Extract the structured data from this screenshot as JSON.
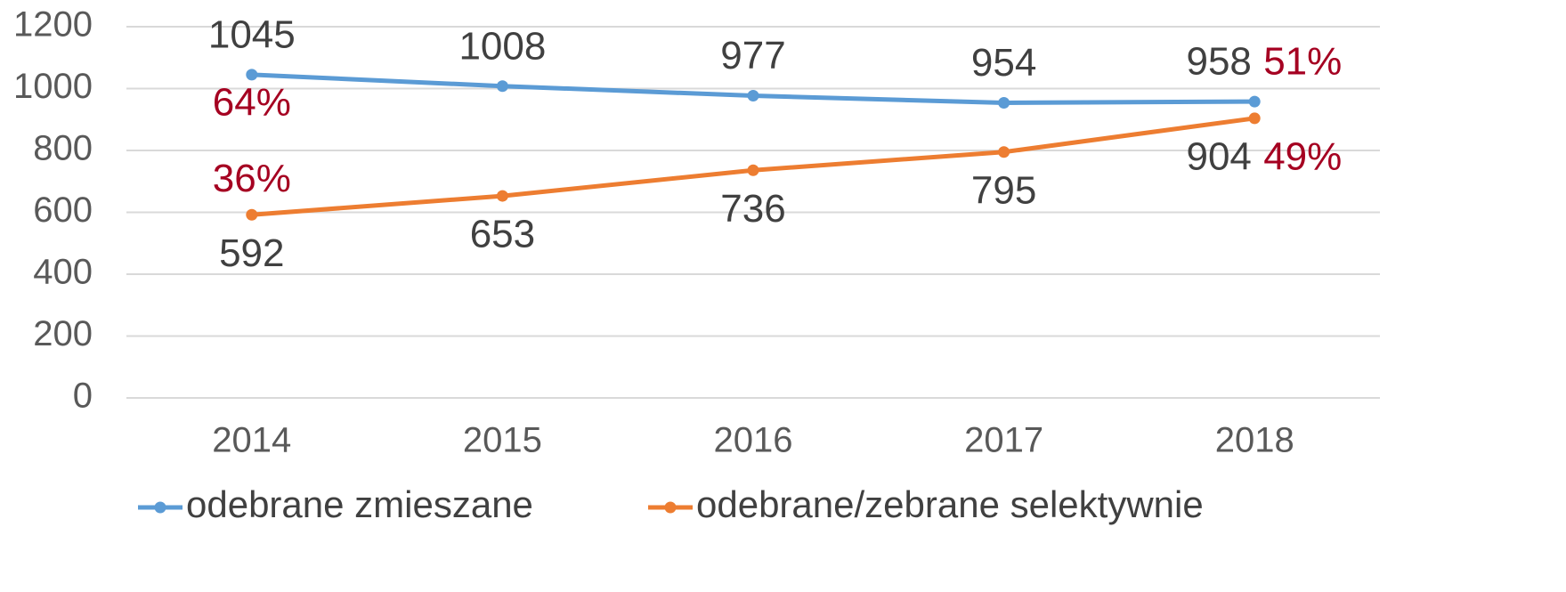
{
  "chart_data": {
    "type": "line",
    "categories": [
      "2014",
      "2015",
      "2016",
      "2017",
      "2018"
    ],
    "series": [
      {
        "name": "odebrane zmieszane",
        "color": "#5b9bd5",
        "values": [
          1045,
          1008,
          977,
          954,
          958
        ]
      },
      {
        "name": "odebrane/zebrane selektywnie",
        "color": "#ed7d31",
        "values": [
          592,
          653,
          736,
          795,
          904
        ]
      }
    ],
    "annotations": [
      {
        "x": "2014",
        "text": "64%"
      },
      {
        "x": "2014",
        "text": "36%"
      },
      {
        "x": "2018",
        "text": "51%"
      },
      {
        "x": "2018",
        "text": "49%"
      }
    ],
    "annotation_color": "#a50021",
    "ylim": [
      0,
      1200
    ],
    "yticks": [
      0,
      200,
      400,
      600,
      800,
      1000,
      1200
    ],
    "grid": true,
    "legend": "bottom"
  }
}
